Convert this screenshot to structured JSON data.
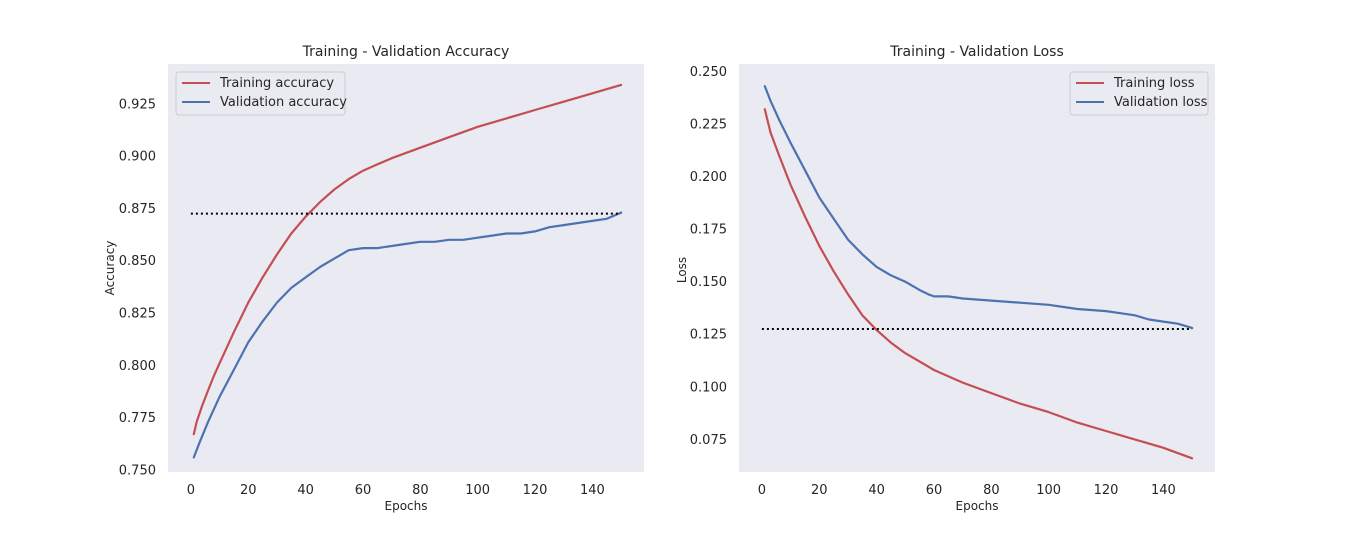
{
  "chart_data": [
    {
      "type": "line",
      "title": "Training - Validation Accuracy",
      "xlabel": "Epochs",
      "ylabel": "Accuracy",
      "xlim": [
        -8,
        158
      ],
      "ylim": [
        0.749,
        0.944
      ],
      "xticks": [
        0,
        20,
        40,
        60,
        80,
        100,
        120,
        140
      ],
      "yticks": [
        0.75,
        0.775,
        0.8,
        0.825,
        0.85,
        0.875,
        0.9,
        0.925
      ],
      "ytick_labels": [
        "0.750",
        "0.775",
        "0.800",
        "0.825",
        "0.850",
        "0.875",
        "0.900",
        "0.925"
      ],
      "grid": false,
      "legend_position": "top-left",
      "series": [
        {
          "name": "Training accuracy",
          "color": "#c44e52",
          "x": [
            1,
            2,
            4,
            6,
            8,
            10,
            15,
            20,
            25,
            30,
            35,
            40,
            45,
            50,
            55,
            60,
            65,
            70,
            80,
            90,
            100,
            110,
            120,
            130,
            140,
            150
          ],
          "y": [
            0.767,
            0.773,
            0.781,
            0.788,
            0.795,
            0.801,
            0.816,
            0.83,
            0.842,
            0.853,
            0.863,
            0.871,
            0.878,
            0.884,
            0.889,
            0.893,
            0.896,
            0.899,
            0.904,
            0.909,
            0.914,
            0.918,
            0.922,
            0.926,
            0.93,
            0.934
          ]
        },
        {
          "name": "Validation accuracy",
          "color": "#4c72b0",
          "x": [
            1,
            3,
            6,
            10,
            15,
            20,
            25,
            30,
            35,
            40,
            45,
            50,
            55,
            60,
            65,
            70,
            75,
            80,
            85,
            90,
            95,
            100,
            105,
            110,
            115,
            120,
            125,
            130,
            135,
            140,
            145,
            150
          ],
          "y": [
            0.756,
            0.763,
            0.773,
            0.785,
            0.798,
            0.811,
            0.821,
            0.83,
            0.837,
            0.842,
            0.847,
            0.851,
            0.855,
            0.856,
            0.856,
            0.857,
            0.858,
            0.859,
            0.859,
            0.86,
            0.86,
            0.861,
            0.862,
            0.863,
            0.863,
            0.864,
            0.866,
            0.867,
            0.868,
            0.869,
            0.87,
            0.873
          ]
        },
        {
          "name": "",
          "style": "dotted",
          "color": "#000000",
          "x": [
            0,
            150
          ],
          "y": [
            0.8725,
            0.8725
          ]
        }
      ]
    },
    {
      "type": "line",
      "title": "Training - Validation Loss",
      "xlabel": "Epochs",
      "ylabel": "Loss",
      "xlim": [
        -8,
        158
      ],
      "ylim": [
        0.0595,
        0.2535
      ],
      "xticks": [
        0,
        20,
        40,
        60,
        80,
        100,
        120,
        140
      ],
      "yticks": [
        0.075,
        0.1,
        0.125,
        0.15,
        0.175,
        0.2,
        0.225,
        0.25
      ],
      "ytick_labels": [
        "0.075",
        "0.100",
        "0.125",
        "0.150",
        "0.175",
        "0.200",
        "0.225",
        "0.250"
      ],
      "grid": false,
      "legend_position": "top-right",
      "series": [
        {
          "name": "Training loss",
          "color": "#c44e52",
          "x": [
            1,
            3,
            6,
            10,
            15,
            20,
            25,
            30,
            35,
            40,
            45,
            50,
            55,
            60,
            70,
            80,
            90,
            100,
            110,
            120,
            130,
            140,
            150
          ],
          "y": [
            0.232,
            0.221,
            0.21,
            0.196,
            0.181,
            0.167,
            0.155,
            0.144,
            0.134,
            0.127,
            0.121,
            0.116,
            0.112,
            0.108,
            0.102,
            0.097,
            0.092,
            0.088,
            0.083,
            0.079,
            0.075,
            0.071,
            0.066
          ]
        },
        {
          "name": "Validation loss",
          "color": "#4c72b0",
          "x": [
            1,
            3,
            6,
            10,
            15,
            20,
            25,
            30,
            35,
            40,
            45,
            50,
            55,
            58,
            60,
            65,
            70,
            80,
            90,
            100,
            110,
            120,
            125,
            130,
            135,
            140,
            145,
            150
          ],
          "y": [
            0.243,
            0.236,
            0.227,
            0.216,
            0.203,
            0.19,
            0.18,
            0.17,
            0.163,
            0.157,
            0.153,
            0.15,
            0.146,
            0.144,
            0.143,
            0.143,
            0.142,
            0.141,
            0.14,
            0.139,
            0.137,
            0.136,
            0.135,
            0.134,
            0.132,
            0.131,
            0.13,
            0.128
          ]
        },
        {
          "name": "",
          "style": "dotted",
          "color": "#000000",
          "x": [
            0,
            150
          ],
          "y": [
            0.1275,
            0.1275
          ]
        }
      ]
    }
  ]
}
